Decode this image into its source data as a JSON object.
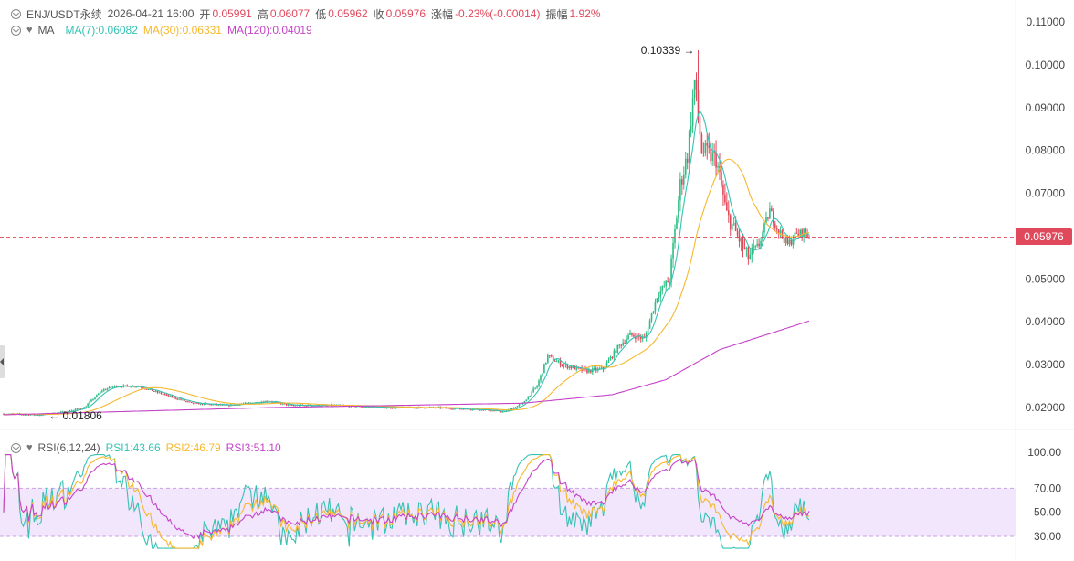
{
  "header": {
    "symbol": "ENJ/USDT永续",
    "datetime": "2026-04-21 16:00",
    "open_label": "开",
    "open": "0.05991",
    "high_label": "高",
    "high": "0.06077",
    "low_label": "低",
    "low": "0.05962",
    "close_label": "收",
    "close": "0.05976",
    "change_label": "涨幅",
    "change": "-0.23%(-0.00014)",
    "amplitude_label": "振幅",
    "amplitude": "1.92%"
  },
  "ma_legend": {
    "label": "MA",
    "ma7": "MA(7):0.06082",
    "ma30": "MA(30):0.06331",
    "ma120": "MA(120):0.04019"
  },
  "rsi_legend": {
    "label": "RSI(6,12,24)",
    "rsi1": "RSI1:43.66",
    "rsi2": "RSI2:46.79",
    "rsi3": "RSI3:51.10"
  },
  "price_axis_ticks": [
    "0.11000",
    "0.10000",
    "0.09000",
    "0.08000",
    "0.07000",
    "0.06000",
    "0.05000",
    "0.04000",
    "0.03000",
    "0.02000"
  ],
  "rsi_axis_ticks": [
    "100.00",
    "70.00",
    "50.00",
    "30.00"
  ],
  "annotations": {
    "max_label": "0.10339",
    "min_label": "0.01806",
    "last_price": "0.05976"
  },
  "colors": {
    "up": "#2ebd85",
    "down": "#e0495b",
    "ma7": "#36c2b4",
    "ma30": "#f5b82e",
    "ma120": "#c543c8",
    "rsi1": "#36c2b4",
    "rsi2": "#f5b82e",
    "rsi3": "#c543c8",
    "rsi_band": "#f1e6fb"
  },
  "chart_data": [
    {
      "type": "candlestick",
      "title": "ENJ/USDT永续",
      "y_ticks": [
        0.02,
        0.03,
        0.04,
        0.05,
        0.06,
        0.07,
        0.08,
        0.09,
        0.1,
        0.11
      ],
      "last_price": 0.05976,
      "max": 0.10339,
      "min": 0.01806,
      "close_path": [
        {
          "i": 0,
          "v": 0.0185
        },
        {
          "i": 20,
          "v": 0.0183
        },
        {
          "i": 35,
          "v": 0.019
        },
        {
          "i": 45,
          "v": 0.02
        },
        {
          "i": 55,
          "v": 0.024
        },
        {
          "i": 62,
          "v": 0.025
        },
        {
          "i": 75,
          "v": 0.025
        },
        {
          "i": 90,
          "v": 0.023
        },
        {
          "i": 105,
          "v": 0.021
        },
        {
          "i": 125,
          "v": 0.0205
        },
        {
          "i": 148,
          "v": 0.0215
        },
        {
          "i": 160,
          "v": 0.0205
        },
        {
          "i": 185,
          "v": 0.0205
        },
        {
          "i": 215,
          "v": 0.02
        },
        {
          "i": 240,
          "v": 0.02
        },
        {
          "i": 268,
          "v": 0.0195
        },
        {
          "i": 280,
          "v": 0.019
        },
        {
          "i": 290,
          "v": 0.021
        },
        {
          "i": 298,
          "v": 0.025
        },
        {
          "i": 304,
          "v": 0.032
        },
        {
          "i": 312,
          "v": 0.03
        },
        {
          "i": 325,
          "v": 0.0285
        },
        {
          "i": 335,
          "v": 0.029
        },
        {
          "i": 343,
          "v": 0.034
        },
        {
          "i": 350,
          "v": 0.037
        },
        {
          "i": 358,
          "v": 0.036
        },
        {
          "i": 365,
          "v": 0.046
        },
        {
          "i": 372,
          "v": 0.05
        },
        {
          "i": 378,
          "v": 0.072
        },
        {
          "i": 382,
          "v": 0.079
        },
        {
          "i": 386,
          "v": 0.096
        },
        {
          "i": 390,
          "v": 0.08
        },
        {
          "i": 398,
          "v": 0.078
        },
        {
          "i": 404,
          "v": 0.065
        },
        {
          "i": 410,
          "v": 0.06
        },
        {
          "i": 416,
          "v": 0.055
        },
        {
          "i": 422,
          "v": 0.058
        },
        {
          "i": 428,
          "v": 0.066
        },
        {
          "i": 432,
          "v": 0.062
        },
        {
          "i": 438,
          "v": 0.058
        },
        {
          "i": 442,
          "v": 0.06
        },
        {
          "i": 447,
          "v": 0.061
        },
        {
          "i": 450,
          "v": 0.0598
        }
      ],
      "ma120_path": [
        {
          "i": 0,
          "v": 0.0183
        },
        {
          "i": 150,
          "v": 0.02
        },
        {
          "i": 290,
          "v": 0.021
        },
        {
          "i": 340,
          "v": 0.023
        },
        {
          "i": 370,
          "v": 0.0265
        },
        {
          "i": 400,
          "v": 0.0335
        },
        {
          "i": 430,
          "v": 0.0375
        },
        {
          "i": 450,
          "v": 0.0402
        }
      ]
    },
    {
      "type": "line",
      "title": "RSI(6,12,24)",
      "y_ticks": [
        30,
        50,
        70,
        100
      ],
      "band": [
        30,
        70
      ],
      "series": [
        {
          "name": "RSI1",
          "last": 43.66
        },
        {
          "name": "RSI2",
          "last": 46.79
        },
        {
          "name": "RSI3",
          "last": 51.1
        }
      ]
    }
  ]
}
